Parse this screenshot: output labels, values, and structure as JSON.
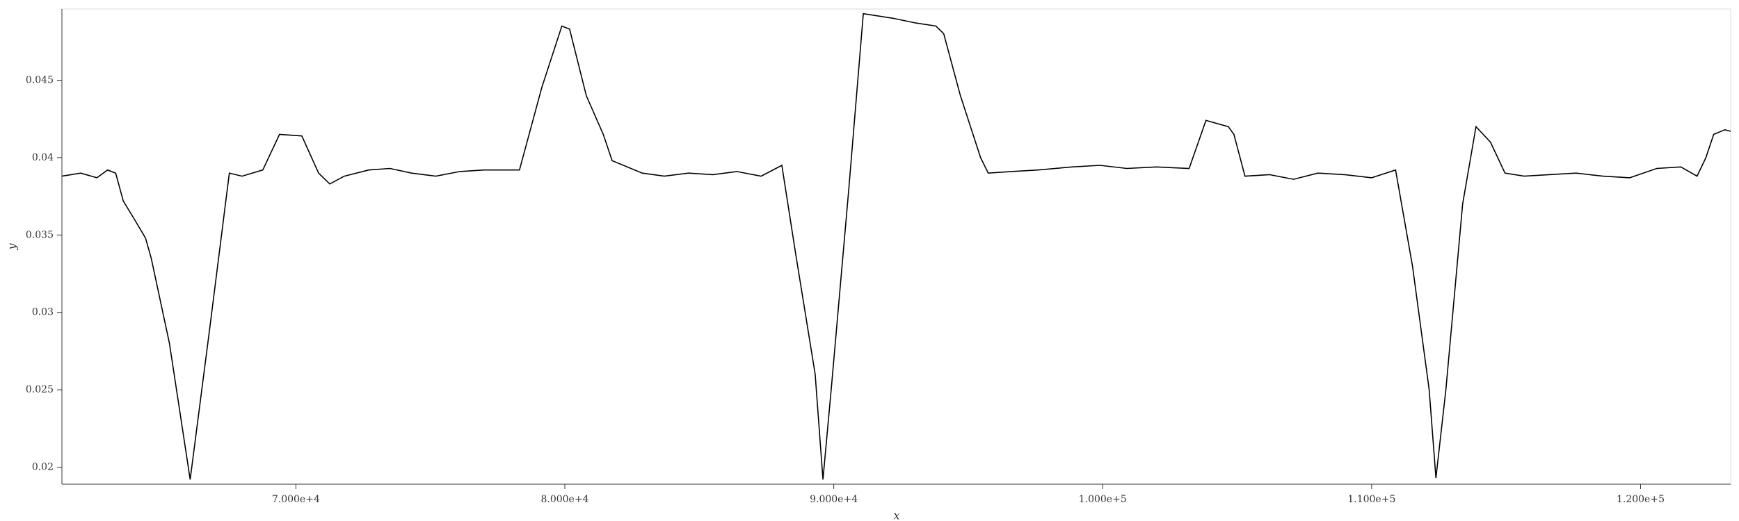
{
  "chart_data": {
    "type": "line",
    "x_label": "x",
    "y_label": "y",
    "x": [
      61300,
      62000,
      62600,
      63000,
      63300,
      63580,
      64000,
      64410,
      64620,
      65300,
      66070,
      66800,
      67525,
      68000,
      68770,
      69390,
      70220,
      70845,
      71260,
      71800,
      72710,
      73500,
      74300,
      75200,
      76100,
      77000,
      78315,
      79140,
      79890,
      80180,
      80800,
      81430,
      81760,
      82880,
      83700,
      84600,
      85500,
      86400,
      87300,
      88070,
      88565,
      89310,
      89600,
      89930,
      90560,
      91100,
      92220,
      93050,
      93800,
      94090,
      94710,
      95460,
      95745,
      96600,
      97600,
      98860,
      99900,
      100900,
      102000,
      103215,
      103840,
      104670,
      104880,
      105290,
      106200,
      107100,
      108000,
      109000,
      110000,
      110890,
      111520,
      112140,
      112390,
      112760,
      113385,
      113880,
      114420,
      114960,
      115670,
      116600,
      117600,
      118600,
      119600,
      120600,
      121500,
      122100,
      122430,
      122720,
      123135,
      123350
    ],
    "series": [
      {
        "name": "y",
        "color": "#000000",
        "values": [
          0.0388,
          0.039,
          0.0387,
          0.0392,
          0.039,
          0.0372,
          0.036,
          0.0348,
          0.0335,
          0.028,
          0.0192,
          0.029,
          0.039,
          0.0388,
          0.0392,
          0.0415,
          0.0414,
          0.039,
          0.0383,
          0.0388,
          0.0392,
          0.0393,
          0.039,
          0.0388,
          0.0391,
          0.0392,
          0.0392,
          0.0445,
          0.0485,
          0.0483,
          0.044,
          0.0415,
          0.0398,
          0.039,
          0.0388,
          0.039,
          0.0389,
          0.0391,
          0.0388,
          0.0395,
          0.034,
          0.026,
          0.0192,
          0.0255,
          0.038,
          0.0493,
          0.049,
          0.0487,
          0.0485,
          0.048,
          0.044,
          0.04,
          0.039,
          0.0391,
          0.0392,
          0.0394,
          0.0395,
          0.0393,
          0.0394,
          0.0393,
          0.0424,
          0.042,
          0.0415,
          0.0388,
          0.0389,
          0.0386,
          0.039,
          0.0389,
          0.0387,
          0.0392,
          0.033,
          0.025,
          0.0193,
          0.025,
          0.037,
          0.042,
          0.041,
          0.039,
          0.0388,
          0.0389,
          0.039,
          0.0388,
          0.0387,
          0.0393,
          0.0394,
          0.0388,
          0.04,
          0.0415,
          0.0418,
          0.0417
        ]
      }
    ],
    "xlim": [
      61300,
      123350
    ],
    "ylim": [
      0.0189,
      0.0496
    ],
    "xticks": [
      {
        "value": 70000,
        "label": "7.000e+4"
      },
      {
        "value": 80000,
        "label": "8.000e+4"
      },
      {
        "value": 90000,
        "label": "9.000e+4"
      },
      {
        "value": 100000,
        "label": "1.000e+5"
      },
      {
        "value": 110000,
        "label": "1.100e+5"
      },
      {
        "value": 120000,
        "label": "1.200e+5"
      }
    ],
    "yticks": [
      0.02,
      0.025,
      0.03,
      0.035,
      0.04,
      0.045
    ]
  }
}
